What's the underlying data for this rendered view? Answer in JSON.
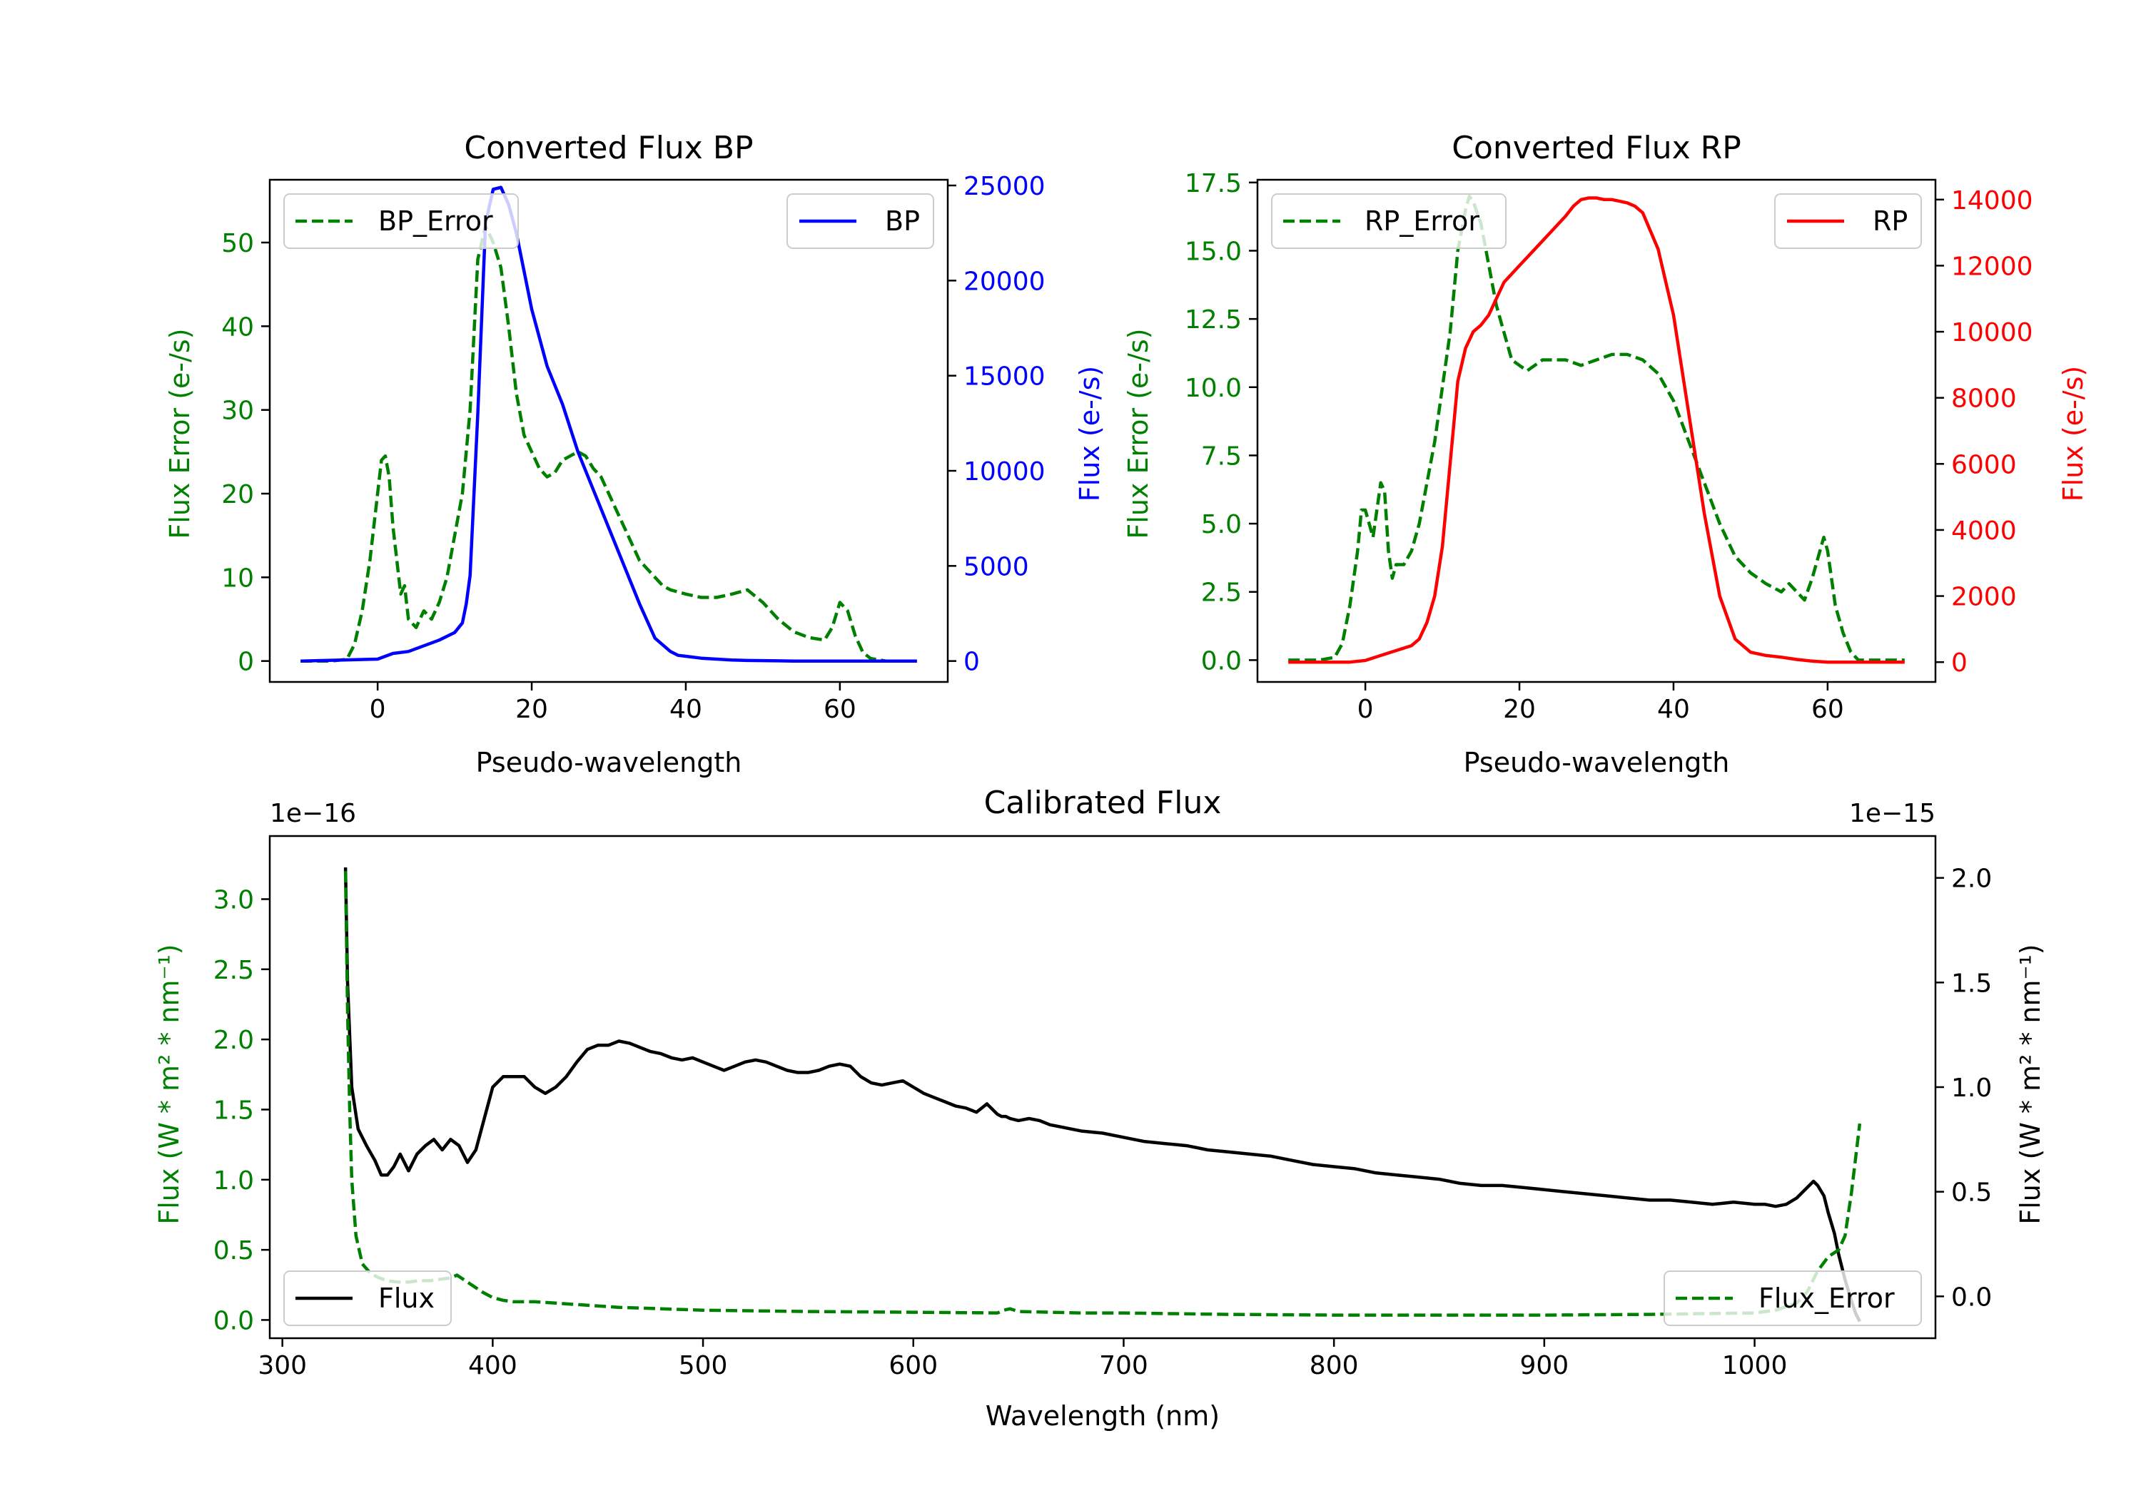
{
  "colors": {
    "green": "#008000",
    "blue": "#0000ff",
    "red": "#ff0000",
    "black": "#000000"
  },
  "chart_data": [
    {
      "type": "line",
      "title": "Converted Flux BP",
      "xlabel": "Pseudo-wavelength",
      "ylabel_left": "Flux Error (e-/s)",
      "ylabel_right": "Flux (e-/s)",
      "xlim": [
        -14,
        74
      ],
      "ylim_left": [
        -2.5,
        57.5
      ],
      "ylim_right": [
        -1100,
        25300
      ],
      "x_ticks": [
        "0",
        "20",
        "40",
        "60"
      ],
      "left_ticks": [
        "0",
        "10",
        "20",
        "30",
        "40",
        "50"
      ],
      "right_ticks": [
        "0",
        "5000",
        "10000",
        "15000",
        "20000",
        "25000"
      ],
      "legend_left": "BP_Error",
      "legend_right": "BP",
      "series": [
        {
          "name": "BP_Error",
          "axis": "left",
          "color": "green",
          "style": "dashed",
          "x": [
            -10,
            -6,
            -4,
            -3,
            -2,
            -1,
            0,
            0.5,
            1,
            1.5,
            2,
            3,
            3.5,
            4,
            5,
            6,
            7,
            8,
            9,
            10,
            11,
            12,
            13,
            13.5,
            14,
            15,
            16,
            17,
            18,
            19,
            20,
            21,
            22,
            23,
            24,
            25,
            26,
            27,
            28,
            29,
            30,
            31,
            32,
            33,
            34,
            35,
            36,
            37,
            38,
            40,
            42,
            44,
            46,
            48,
            50,
            52,
            54,
            56,
            58,
            59,
            60,
            61,
            62,
            63,
            64,
            66,
            70
          ],
          "y": [
            0,
            0,
            0.2,
            2,
            6,
            12,
            20,
            24,
            24.5,
            22,
            16,
            8,
            9,
            5,
            4,
            6,
            5,
            7,
            10,
            15,
            20,
            30,
            48,
            50,
            52,
            50,
            47,
            40,
            32,
            27,
            25,
            23,
            22,
            22.5,
            24,
            24.5,
            25,
            24.5,
            23,
            22,
            20,
            18,
            16,
            14,
            12,
            11,
            10,
            9,
            8.5,
            8,
            7.6,
            7.6,
            8,
            8.5,
            7,
            5,
            3.5,
            2.8,
            2.5,
            4,
            7,
            6,
            3,
            1,
            0.3,
            0,
            0
          ]
        },
        {
          "name": "BP",
          "axis": "right",
          "color": "blue",
          "style": "solid",
          "x": [
            -10,
            0,
            2,
            4,
            6,
            8,
            9,
            10,
            11,
            11.5,
            12,
            13,
            13.5,
            14,
            15,
            16,
            17,
            18,
            19,
            20,
            22,
            24,
            26,
            28,
            30,
            32,
            33,
            34,
            36,
            38,
            39,
            40,
            42,
            44,
            46,
            48,
            50,
            52,
            54,
            56,
            60,
            65,
            70
          ],
          "y": [
            0,
            100,
            400,
            500,
            800,
            1100,
            1300,
            1500,
            2000,
            3000,
            4500,
            13000,
            18000,
            23000,
            24800,
            24900,
            24000,
            22500,
            20500,
            18500,
            15500,
            13500,
            11000,
            9000,
            7000,
            5000,
            4000,
            3000,
            1200,
            500,
            300,
            250,
            150,
            100,
            50,
            30,
            20,
            10,
            0,
            0,
            0,
            0,
            0
          ]
        }
      ]
    },
    {
      "type": "line",
      "title": "Converted Flux RP",
      "xlabel": "Pseudo-wavelength",
      "ylabel_left": "Flux Error (e-/s)",
      "ylabel_right": "Flux (e-/s)",
      "xlim": [
        -14,
        74
      ],
      "ylim_left": [
        -0.8,
        17.6
      ],
      "ylim_right": [
        -600,
        14600
      ],
      "x_ticks": [
        "0",
        "20",
        "40",
        "60"
      ],
      "left_ticks": [
        "0.0",
        "2.5",
        "5.0",
        "7.5",
        "10.0",
        "12.5",
        "15.0",
        "17.5"
      ],
      "right_ticks": [
        "0",
        "2000",
        "4000",
        "6000",
        "8000",
        "10000",
        "12000",
        "14000"
      ],
      "legend_left": "RP_Error",
      "legend_right": "RP",
      "series": [
        {
          "name": "RP_Error",
          "axis": "left",
          "color": "green",
          "style": "dashed",
          "x": [
            -10,
            -6,
            -4,
            -3,
            -2,
            -1,
            -0.5,
            0,
            1,
            1.5,
            2,
            2.5,
            3,
            3.5,
            4,
            5,
            6,
            7,
            8,
            9,
            10,
            11,
            12,
            13,
            13.5,
            14,
            15,
            16,
            17,
            18,
            19,
            20,
            21,
            22,
            23,
            24,
            26,
            28,
            30,
            32,
            34,
            36,
            38,
            40,
            42,
            44,
            46,
            48,
            50,
            52,
            54,
            55,
            56,
            57,
            58,
            59,
            59.5,
            60,
            61,
            62,
            63,
            64,
            66,
            70
          ],
          "y": [
            0,
            0,
            0.1,
            0.6,
            2,
            4,
            5.5,
            5.5,
            4.5,
            5.5,
            6.5,
            6.2,
            4,
            3,
            3.5,
            3.5,
            4,
            5,
            6.5,
            8,
            10,
            12,
            15,
            16.5,
            17,
            16.8,
            16,
            14.5,
            13,
            12,
            11,
            10.8,
            10.6,
            10.8,
            11,
            11,
            11,
            10.8,
            11,
            11.2,
            11.2,
            11,
            10.5,
            9.5,
            8,
            6.5,
            5,
            3.8,
            3.2,
            2.8,
            2.5,
            2.8,
            2.5,
            2.2,
            3,
            4,
            4.5,
            4,
            2,
            1,
            0.3,
            0,
            0,
            0
          ]
        },
        {
          "name": "RP",
          "axis": "right",
          "color": "red",
          "style": "solid",
          "x": [
            -10,
            -2,
            0,
            2,
            4,
            6,
            7,
            8,
            9,
            10,
            11,
            12,
            13,
            14,
            15,
            16,
            17,
            18,
            20,
            22,
            24,
            26,
            27,
            28,
            29,
            30,
            31,
            32,
            33,
            34,
            35,
            36,
            38,
            40,
            42,
            44,
            46,
            48,
            50,
            52,
            54,
            56,
            58,
            60,
            62,
            65,
            70
          ],
          "y": [
            0,
            0,
            50,
            200,
            350,
            500,
            700,
            1200,
            2000,
            3500,
            6000,
            8500,
            9500,
            10000,
            10200,
            10500,
            11000,
            11500,
            12000,
            12500,
            13000,
            13500,
            13800,
            14000,
            14050,
            14050,
            14000,
            14000,
            13950,
            13900,
            13800,
            13600,
            12500,
            10500,
            7500,
            4500,
            2000,
            700,
            300,
            200,
            150,
            80,
            30,
            0,
            0,
            0,
            0
          ]
        }
      ]
    },
    {
      "type": "line",
      "title": "Calibrated Flux",
      "xlabel": "Wavelength (nm)",
      "ylabel_left": "Flux (W * m² * nm⁻¹)",
      "ylabel_right": "Flux (W * m² * nm⁻¹)",
      "left_exponent": "1e−16",
      "right_exponent": "1e−15",
      "xlim": [
        294,
        1086
      ],
      "ylim_left": [
        -0.13,
        3.45
      ],
      "ylim_right": [
        -0.2,
        2.2
      ],
      "x_ticks": [
        "300",
        "400",
        "500",
        "600",
        "700",
        "800",
        "900",
        "1000"
      ],
      "left_ticks": [
        "0.0",
        "0.5",
        "1.0",
        "1.5",
        "2.0",
        "2.5",
        "3.0"
      ],
      "right_ticks": [
        "0.0",
        "0.5",
        "1.0",
        "1.5",
        "2.0"
      ],
      "legend_left": "Flux",
      "legend_right": "Flux_Error",
      "series": [
        {
          "name": "Flux",
          "axis": "right",
          "color": "black",
          "style": "solid",
          "x": [
            330,
            331,
            333,
            336,
            340,
            344,
            347,
            350,
            353,
            356,
            360,
            364,
            368,
            372,
            376,
            380,
            384,
            388,
            392,
            396,
            400,
            405,
            410,
            415,
            420,
            425,
            430,
            435,
            440,
            445,
            450,
            455,
            460,
            465,
            470,
            475,
            480,
            485,
            490,
            495,
            500,
            505,
            510,
            515,
            520,
            525,
            530,
            535,
            540,
            545,
            550,
            555,
            560,
            565,
            570,
            575,
            580,
            585,
            590,
            595,
            600,
            605,
            610,
            615,
            620,
            625,
            630,
            635,
            640,
            642,
            644,
            646,
            650,
            655,
            660,
            665,
            670,
            675,
            680,
            690,
            700,
            710,
            720,
            730,
            740,
            750,
            760,
            770,
            780,
            790,
            800,
            810,
            820,
            830,
            840,
            850,
            860,
            870,
            880,
            890,
            900,
            910,
            920,
            930,
            940,
            950,
            960,
            970,
            980,
            990,
            1000,
            1005,
            1010,
            1015,
            1020,
            1025,
            1028,
            1030,
            1033,
            1035,
            1038,
            1040,
            1043,
            1046,
            1048,
            1050
          ],
          "y": [
            2.05,
            1.5,
            1.0,
            0.8,
            0.72,
            0.65,
            0.58,
            0.58,
            0.62,
            0.68,
            0.6,
            0.68,
            0.72,
            0.75,
            0.7,
            0.75,
            0.72,
            0.64,
            0.7,
            0.85,
            1.0,
            1.05,
            1.05,
            1.05,
            1.0,
            0.97,
            1.0,
            1.05,
            1.12,
            1.18,
            1.2,
            1.2,
            1.22,
            1.21,
            1.19,
            1.17,
            1.16,
            1.14,
            1.13,
            1.14,
            1.12,
            1.1,
            1.08,
            1.1,
            1.12,
            1.13,
            1.12,
            1.1,
            1.08,
            1.07,
            1.07,
            1.08,
            1.1,
            1.11,
            1.1,
            1.05,
            1.02,
            1.01,
            1.02,
            1.03,
            1.0,
            0.97,
            0.95,
            0.93,
            0.91,
            0.9,
            0.88,
            0.92,
            0.87,
            0.86,
            0.86,
            0.85,
            0.84,
            0.85,
            0.84,
            0.82,
            0.81,
            0.8,
            0.79,
            0.78,
            0.76,
            0.74,
            0.73,
            0.72,
            0.7,
            0.69,
            0.68,
            0.67,
            0.65,
            0.63,
            0.62,
            0.61,
            0.59,
            0.58,
            0.57,
            0.56,
            0.54,
            0.53,
            0.53,
            0.52,
            0.51,
            0.5,
            0.49,
            0.48,
            0.47,
            0.46,
            0.46,
            0.45,
            0.44,
            0.45,
            0.44,
            0.44,
            0.43,
            0.44,
            0.47,
            0.52,
            0.55,
            0.53,
            0.48,
            0.4,
            0.3,
            0.2,
            0.08,
            -0.02,
            -0.08,
            -0.12
          ]
        },
        {
          "name": "Flux_Error",
          "axis": "left",
          "color": "green",
          "style": "dashed",
          "x": [
            330,
            331,
            332,
            333,
            335,
            338,
            342,
            346,
            350,
            355,
            360,
            365,
            370,
            375,
            380,
            383,
            386,
            390,
            395,
            400,
            405,
            410,
            420,
            430,
            440,
            450,
            460,
            480,
            500,
            550,
            600,
            640,
            643,
            646,
            650,
            680,
            700,
            750,
            800,
            850,
            900,
            950,
            1000,
            1010,
            1020,
            1025,
            1030,
            1035,
            1040,
            1043,
            1046,
            1050
          ],
          "y": [
            3.2,
            2.2,
            1.5,
            1.0,
            0.6,
            0.4,
            0.33,
            0.3,
            0.28,
            0.27,
            0.27,
            0.28,
            0.28,
            0.29,
            0.3,
            0.32,
            0.29,
            0.25,
            0.2,
            0.16,
            0.14,
            0.13,
            0.13,
            0.12,
            0.11,
            0.1,
            0.09,
            0.08,
            0.07,
            0.06,
            0.055,
            0.05,
            0.07,
            0.08,
            0.06,
            0.05,
            0.05,
            0.04,
            0.035,
            0.035,
            0.035,
            0.04,
            0.05,
            0.07,
            0.12,
            0.2,
            0.35,
            0.45,
            0.5,
            0.6,
            0.9,
            1.4
          ]
        }
      ]
    }
  ]
}
